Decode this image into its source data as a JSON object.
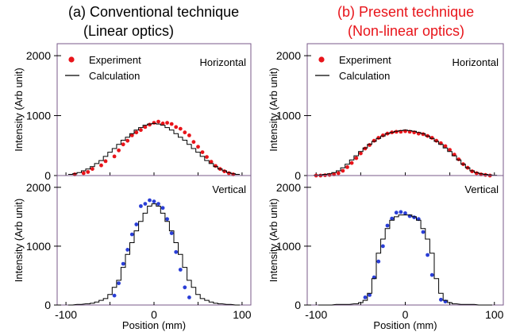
{
  "colors": {
    "experiment_red": "#e8141a",
    "experiment_blue": "#2a3ed6",
    "calc_line": "#000000",
    "frame": "#7a5a8a",
    "title_left": "#000000",
    "title_right": "#e8141a"
  },
  "titles": {
    "left_line1": "(a)  Conventional technique",
    "left_line2": "(Linear optics)",
    "right_line1": "(b) Present technique",
    "right_line2": "(Non-linear optics)"
  },
  "axes": {
    "ylabel": "Intensity (Arb unit)",
    "xlabel": "Position (mm)"
  },
  "chart_data": [
    {
      "id": "a-horizontal",
      "type": "scatter",
      "panel_label": "Horizontal",
      "xlim": [
        -110,
        110
      ],
      "ylim": [
        0,
        2200
      ],
      "yticks": [
        "0",
        "1000",
        "2000"
      ],
      "xticks": [],
      "legend": {
        "placement": "top-left",
        "entries": [
          "Experiment",
          "Calculation"
        ]
      },
      "series": [
        {
          "name": "Experiment",
          "kind": "points",
          "color_key": "experiment_red",
          "x": [
            -90,
            -80,
            -75,
            -70,
            -60,
            -55,
            -45,
            -40,
            -35,
            -30,
            -25,
            -20,
            -15,
            -10,
            -5,
            0,
            5,
            10,
            15,
            20,
            25,
            30,
            35,
            40,
            45,
            50,
            55,
            60,
            65,
            70,
            75,
            80,
            85,
            90
          ],
          "y": [
            20,
            40,
            60,
            110,
            170,
            240,
            320,
            420,
            520,
            580,
            670,
            720,
            760,
            810,
            850,
            880,
            900,
            870,
            880,
            860,
            810,
            780,
            720,
            670,
            560,
            480,
            390,
            310,
            230,
            160,
            110,
            70,
            40,
            20
          ]
        },
        {
          "name": "Calculation",
          "kind": "step",
          "color_key": "calc_line",
          "x": [
            -95,
            -90,
            -85,
            -80,
            -75,
            -70,
            -65,
            -60,
            -55,
            -50,
            -45,
            -40,
            -35,
            -30,
            -25,
            -20,
            -15,
            -10,
            -5,
            0,
            5,
            10,
            15,
            20,
            25,
            30,
            35,
            40,
            45,
            50,
            55,
            60,
            65,
            70,
            75,
            80,
            85,
            90,
            95
          ],
          "y": [
            20,
            30,
            50,
            80,
            110,
            150,
            200,
            250,
            320,
            390,
            450,
            520,
            590,
            640,
            700,
            760,
            800,
            840,
            860,
            870,
            860,
            840,
            800,
            760,
            700,
            640,
            590,
            520,
            450,
            390,
            320,
            250,
            200,
            150,
            110,
            80,
            50,
            30,
            20
          ]
        }
      ]
    },
    {
      "id": "a-vertical",
      "type": "scatter",
      "panel_label": "Vertical",
      "xlim": [
        -110,
        110
      ],
      "ylim": [
        0,
        2200
      ],
      "yticks": [
        "0",
        "1000",
        "2000"
      ],
      "xticks": [
        "-100",
        "0",
        "100"
      ],
      "series": [
        {
          "name": "Experiment",
          "kind": "points",
          "color_key": "experiment_blue",
          "x": [
            -45,
            -40,
            -35,
            -30,
            -25,
            -20,
            -15,
            -10,
            -5,
            0,
            5,
            10,
            15,
            20,
            25,
            30,
            35,
            40
          ],
          "y": [
            160,
            370,
            700,
            940,
            1200,
            1370,
            1680,
            1720,
            1780,
            1760,
            1720,
            1650,
            1460,
            1220,
            900,
            600,
            300,
            130
          ]
        },
        {
          "name": "Calculation",
          "kind": "step",
          "color_key": "calc_line",
          "x": [
            -95,
            -85,
            -75,
            -70,
            -65,
            -60,
            -55,
            -50,
            -45,
            -40,
            -35,
            -30,
            -25,
            -20,
            -15,
            -10,
            -5,
            0,
            5,
            10,
            15,
            20,
            25,
            30,
            35,
            40,
            45,
            50,
            55,
            60,
            65,
            70,
            75,
            85,
            95
          ],
          "y": [
            0,
            10,
            20,
            30,
            50,
            80,
            110,
            180,
            300,
            420,
            640,
            860,
            1060,
            1260,
            1420,
            1560,
            1680,
            1720,
            1680,
            1560,
            1420,
            1260,
            1060,
            860,
            640,
            420,
            300,
            180,
            110,
            80,
            50,
            30,
            20,
            10,
            0
          ]
        }
      ]
    },
    {
      "id": "b-horizontal",
      "type": "scatter",
      "panel_label": "Horizontal",
      "xlim": [
        -110,
        110
      ],
      "ylim": [
        0,
        2200
      ],
      "yticks": [
        "0",
        "1000",
        "2000"
      ],
      "xticks": [],
      "legend": {
        "placement": "top-left",
        "entries": [
          "Experiment",
          "Calculation"
        ]
      },
      "series": [
        {
          "name": "Experiment",
          "kind": "points",
          "color_key": "experiment_red",
          "x": [
            -100,
            -95,
            -90,
            -85,
            -80,
            -75,
            -70,
            -65,
            -60,
            -55,
            -50,
            -45,
            -40,
            -35,
            -30,
            -25,
            -20,
            -15,
            -10,
            -5,
            0,
            5,
            10,
            15,
            20,
            25,
            30,
            35,
            40,
            45,
            50,
            55,
            60,
            65,
            70,
            75,
            80,
            85,
            90,
            95
          ],
          "y": [
            0,
            0,
            5,
            10,
            20,
            40,
            80,
            140,
            210,
            290,
            370,
            450,
            510,
            580,
            630,
            670,
            700,
            720,
            730,
            730,
            740,
            730,
            720,
            700,
            690,
            660,
            630,
            580,
            540,
            490,
            430,
            350,
            270,
            190,
            130,
            70,
            40,
            20,
            10,
            0
          ]
        },
        {
          "name": "Calculation",
          "kind": "step",
          "color_key": "calc_line",
          "x": [
            -105,
            -100,
            -95,
            -90,
            -85,
            -80,
            -75,
            -70,
            -65,
            -60,
            -55,
            -50,
            -45,
            -40,
            -35,
            -30,
            -25,
            -20,
            -15,
            -10,
            -5,
            0,
            5,
            10,
            15,
            20,
            25,
            30,
            35,
            40,
            45,
            50,
            55,
            60,
            65,
            70,
            75,
            80,
            85,
            90,
            95,
            100,
            105
          ],
          "y": [
            0,
            5,
            10,
            20,
            30,
            50,
            80,
            130,
            190,
            260,
            330,
            400,
            460,
            520,
            570,
            620,
            660,
            700,
            720,
            740,
            750,
            760,
            750,
            740,
            720,
            700,
            660,
            620,
            570,
            520,
            460,
            400,
            330,
            260,
            190,
            130,
            80,
            50,
            30,
            20,
            10,
            5,
            0
          ]
        }
      ]
    },
    {
      "id": "b-vertical",
      "type": "scatter",
      "panel_label": "Vertical",
      "xlim": [
        -110,
        110
      ],
      "ylim": [
        0,
        2200
      ],
      "yticks": [
        "0",
        "1000",
        "2000"
      ],
      "xticks": [
        "-100",
        "0",
        "100"
      ],
      "series": [
        {
          "name": "Experiment",
          "kind": "points",
          "color_key": "experiment_blue",
          "x": [
            -45,
            -40,
            -35,
            -30,
            -25,
            -20,
            -15,
            -10,
            -5,
            0,
            5,
            10,
            15,
            20,
            25,
            30,
            40,
            45
          ],
          "y": [
            130,
            170,
            470,
            740,
            1000,
            1350,
            1470,
            1570,
            1580,
            1560,
            1510,
            1490,
            1460,
            1240,
            850,
            510,
            90,
            60
          ]
        },
        {
          "name": "Calculation",
          "kind": "step",
          "color_key": "calc_line",
          "x": [
            -95,
            -85,
            -75,
            -65,
            -55,
            -50,
            -45,
            -40,
            -35,
            -30,
            -25,
            -20,
            -15,
            -10,
            -5,
            0,
            5,
            10,
            15,
            20,
            25,
            30,
            35,
            40,
            45,
            50,
            55,
            65,
            75,
            85,
            95
          ],
          "y": [
            0,
            0,
            10,
            10,
            20,
            40,
            80,
            200,
            450,
            880,
            1120,
            1300,
            1440,
            1500,
            1530,
            1530,
            1530,
            1500,
            1440,
            1300,
            1120,
            880,
            450,
            200,
            80,
            40,
            20,
            10,
            10,
            0,
            0
          ]
        }
      ]
    }
  ]
}
